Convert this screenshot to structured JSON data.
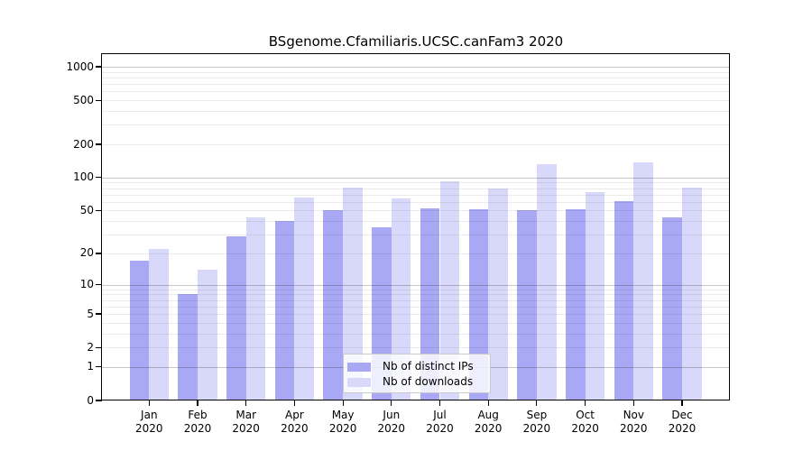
{
  "chart_data": {
    "type": "bar",
    "title": "BSgenome.Cfamiliaris.UCSC.canFam3 2020",
    "y_scale": "log1p",
    "grid": true,
    "legend_position": "inside-bottom-center",
    "categories": [
      "Jan",
      "Feb",
      "Mar",
      "Apr",
      "May",
      "Jun",
      "Jul",
      "Aug",
      "Sep",
      "Oct",
      "Nov",
      "Dec"
    ],
    "x_tick_year": "2020",
    "series": [
      {
        "name": "Nb of distinct IPs",
        "color": "#a8a8f5",
        "values": [
          17,
          8,
          29,
          40,
          50,
          35,
          52,
          51,
          50,
          51,
          61,
          43
        ]
      },
      {
        "name": "Nb of downloads",
        "color": "#d8d8fa",
        "values": [
          22,
          14,
          43,
          66,
          81,
          65,
          93,
          80,
          132,
          74,
          137,
          81
        ]
      }
    ],
    "y_ticks": [
      0,
      1,
      2,
      5,
      10,
      20,
      50,
      100,
      200,
      500,
      1000
    ],
    "ylim": [
      0,
      1300
    ],
    "xlabel": "",
    "ylabel": ""
  }
}
